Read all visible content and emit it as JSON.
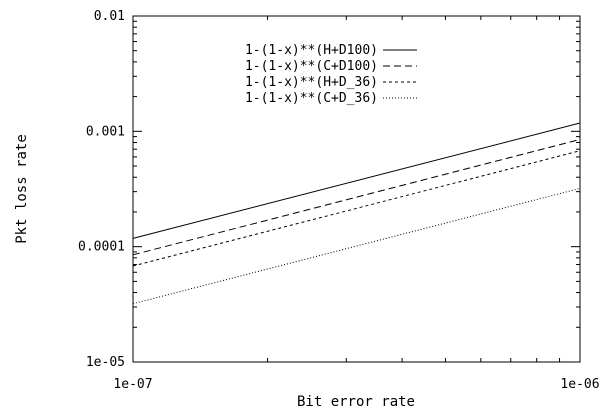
{
  "chart_data": {
    "type": "line",
    "title": "",
    "xlabel": "Bit error rate",
    "ylabel": "Pkt loss rate",
    "x_scale": "log",
    "y_scale": "log",
    "xlim": [
      1e-07,
      1e-06
    ],
    "ylim": [
      1e-05,
      0.01
    ],
    "grid": false,
    "legend_position": "top-right",
    "x_ticks": [
      {
        "value": 1e-07,
        "label": "1e-07"
      },
      {
        "value": 1e-06,
        "label": "1e-06"
      }
    ],
    "y_ticks": [
      {
        "value": 1e-05,
        "label": "1e-05"
      },
      {
        "value": 0.0001,
        "label": "0.0001"
      },
      {
        "value": 0.001,
        "label": "0.001"
      },
      {
        "value": 0.01,
        "label": "0.01"
      }
    ],
    "series": [
      {
        "name": "1-(1-x)**(H+D100)",
        "dash": "solid",
        "x": [
          1e-07,
          1e-06
        ],
        "y": [
          0.000118,
          0.00118
        ]
      },
      {
        "name": "1-(1-x)**(C+D100)",
        "dash": "dashed",
        "x": [
          1e-07,
          1e-06
        ],
        "y": [
          8.5e-05,
          0.00085
        ]
      },
      {
        "name": "1-(1-x)**(H+D_36)",
        "dash": "short-dashed",
        "x": [
          1e-07,
          1e-06
        ],
        "y": [
          6.8e-05,
          0.00068
        ]
      },
      {
        "name": "1-(1-x)**(C+D_36)",
        "dash": "dotted",
        "x": [
          1e-07,
          1e-06
        ],
        "y": [
          3.2e-05,
          0.00032
        ]
      }
    ]
  }
}
